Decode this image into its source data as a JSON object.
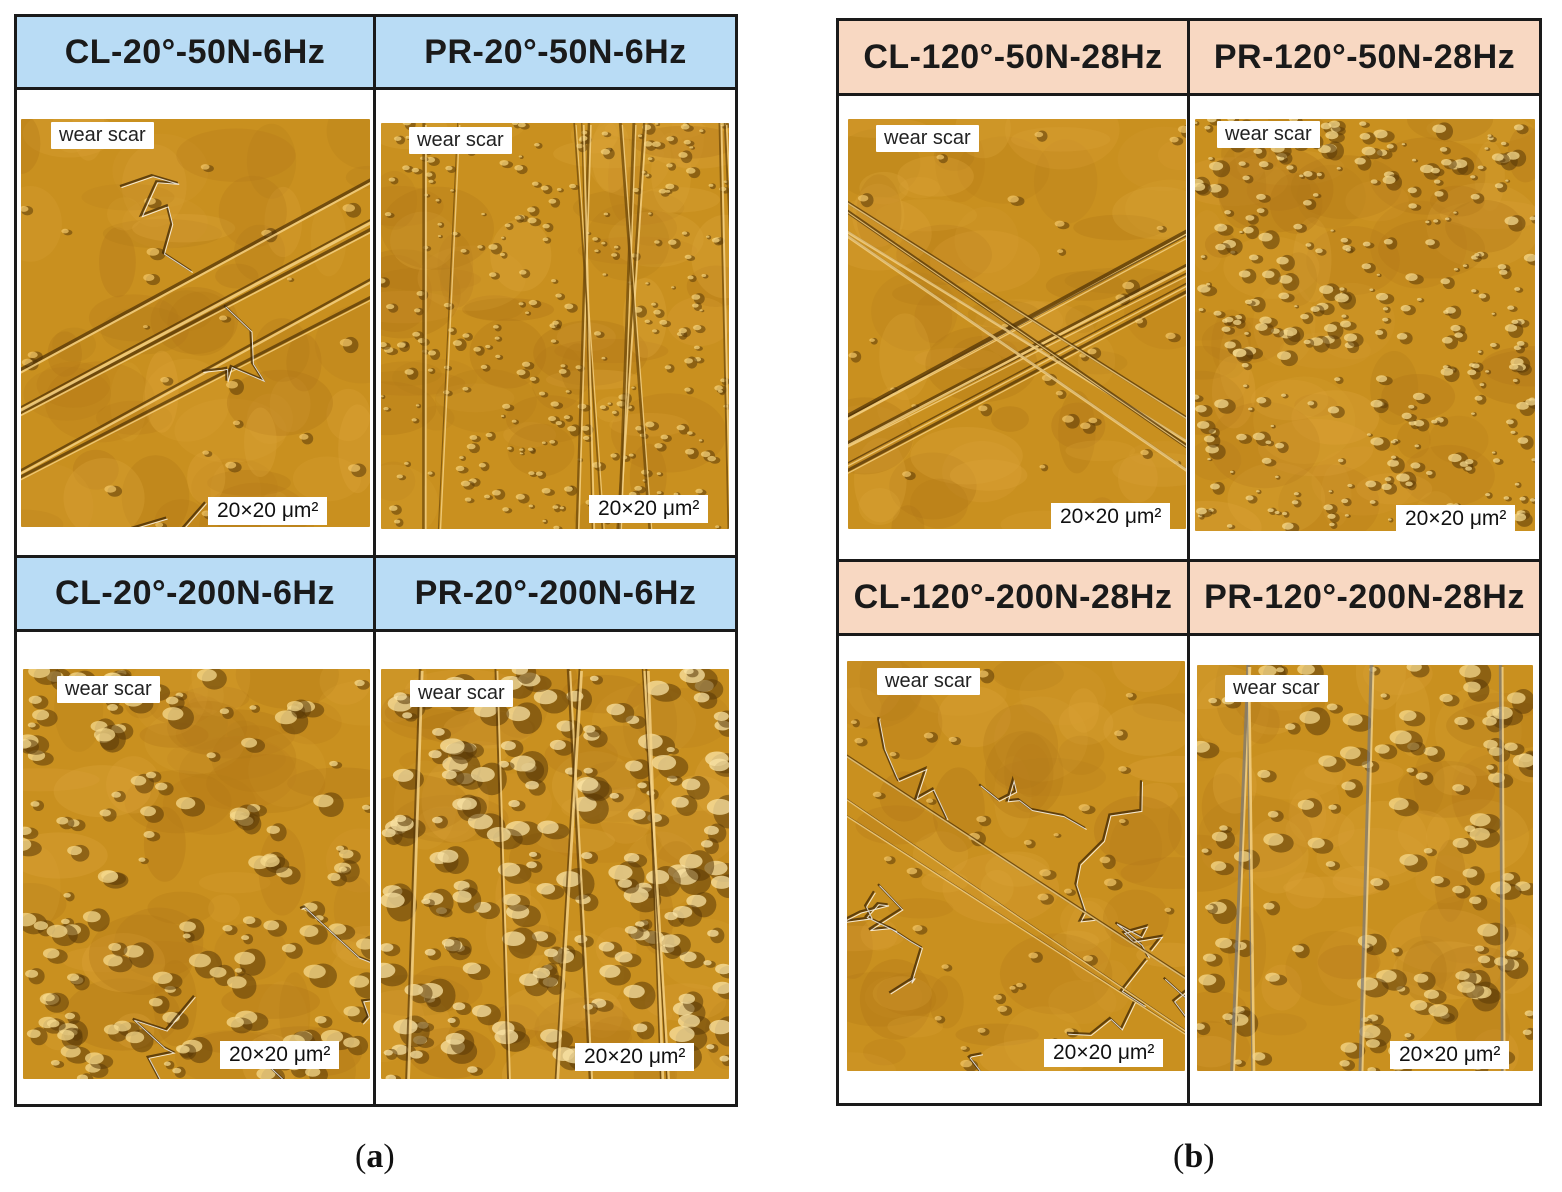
{
  "panels": [
    {
      "caption_letter": "a",
      "cells": [
        {
          "title": "CL-20°-50N-6Hz",
          "overlay_label": "wear scar",
          "scale_label": "20×20 μm²"
        },
        {
          "title": "PR-20°-50N-6Hz",
          "overlay_label": "wear scar",
          "scale_label": "20×20 μm²"
        },
        {
          "title": "CL-20°-200N-6Hz",
          "overlay_label": "wear scar",
          "scale_label": "20×20 μm²"
        },
        {
          "title": "PR-20°-200N-6Hz",
          "overlay_label": "wear scar",
          "scale_label": "20×20 μm²"
        }
      ]
    },
    {
      "caption_letter": "b",
      "cells": [
        {
          "title": "CL-120°-50N-28Hz",
          "overlay_label": "wear scar",
          "scale_label": "20×20 μm²"
        },
        {
          "title": "PR-120°-50N-28Hz",
          "overlay_label": "wear scar",
          "scale_label": "20×20 μm²"
        },
        {
          "title": "CL-120°-200N-28Hz",
          "overlay_label": "wear scar",
          "scale_label": "20×20 μm²"
        },
        {
          "title": "PR-120°-200N-28Hz",
          "overlay_label": "wear scar",
          "scale_label": "20×20 μm²"
        }
      ]
    }
  ],
  "colors": {
    "header_a": "#b9dcf5",
    "header_b": "#f8d8c2",
    "surface": "#c9901f"
  }
}
